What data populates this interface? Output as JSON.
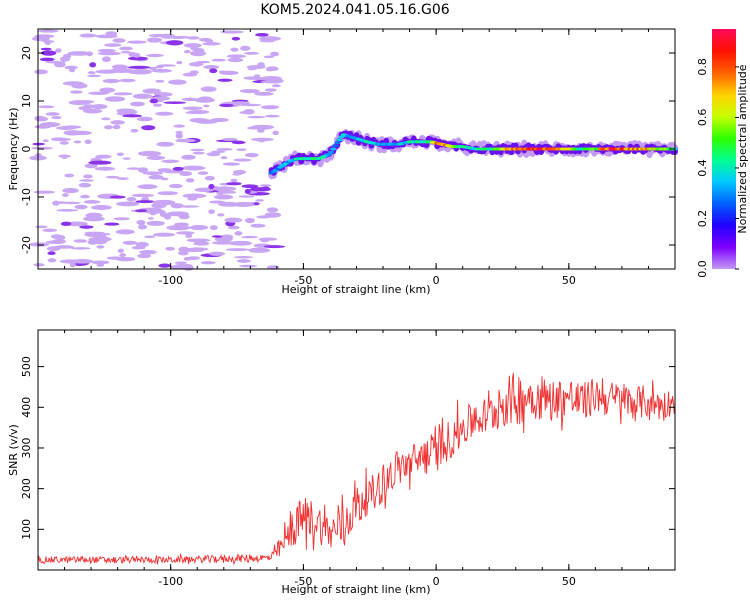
{
  "figure": {
    "title": "KOM5.2024.041.05.16.G06"
  },
  "chart_data": [
    {
      "type": "heatmap",
      "xlabel": "Height of straight line (km)",
      "ylabel": "Frequency (Hz)",
      "xlim": [
        -150,
        90
      ],
      "ylim": [
        -25,
        25
      ],
      "xticks": [
        -100,
        -50,
        0,
        50
      ],
      "yticks": [
        -20,
        -10,
        0,
        10,
        20
      ],
      "colorbar": {
        "label": "Normalized spectral amplitude",
        "range": [
          0.0,
          0.95
        ],
        "ticks": [
          0.0,
          0.2,
          0.4,
          0.6,
          0.8
        ],
        "colormap": [
          "#c39bf5",
          "#7f00ff",
          "#2000ff",
          "#0060ff",
          "#00c8ff",
          "#00ff90",
          "#30ff00",
          "#c8ff00",
          "#ffd000",
          "#ff6000",
          "#ff1000",
          "#ff0a5a"
        ]
      },
      "ridge": {
        "x": [
          -62,
          -58,
          -55,
          -52,
          -48,
          -44,
          -40,
          -37,
          -35,
          -32,
          -29,
          -26,
          -22,
          -18,
          -14,
          -10,
          -6,
          -2,
          2,
          6,
          10,
          15,
          20,
          25,
          30,
          35,
          40,
          45,
          50,
          55,
          60,
          65,
          70,
          75,
          80,
          85,
          90
        ],
        "freq": [
          -5,
          -3.5,
          -2.5,
          -2,
          -2,
          -2,
          -1,
          1.5,
          3,
          2.5,
          2,
          1.5,
          1,
          1,
          1,
          1.5,
          1.5,
          1.5,
          1,
          0.5,
          0.5,
          0,
          0,
          0,
          0,
          0,
          0,
          0,
          0,
          0,
          0,
          0,
          0,
          0,
          0,
          0,
          0
        ],
        "amplitude": [
          0.3,
          0.35,
          0.35,
          0.4,
          0.45,
          0.45,
          0.3,
          0.3,
          0.35,
          0.3,
          0.35,
          0.4,
          0.35,
          0.3,
          0.35,
          0.4,
          0.45,
          0.5,
          0.85,
          0.6,
          0.45,
          0.4,
          0.45,
          0.6,
          0.75,
          0.8,
          0.85,
          0.9,
          0.6,
          0.45,
          0.55,
          0.85,
          0.8,
          0.75,
          0.7,
          0.6,
          0.45
        ]
      },
      "noise_region_x": [
        -150,
        -60
      ]
    },
    {
      "type": "line",
      "xlabel": "Height of straight line (km)",
      "ylabel": "SNR (v/v)",
      "xlim": [
        -150,
        90
      ],
      "ylim": [
        0,
        590
      ],
      "xticks": [
        -100,
        -50,
        0,
        50
      ],
      "yticks": [
        100,
        200,
        300,
        400,
        500
      ],
      "color": "#ee3030",
      "envelope": {
        "x": [
          -150,
          -100,
          -62,
          -58,
          -55,
          -50,
          -45,
          -40,
          -35,
          -30,
          -25,
          -20,
          -15,
          -10,
          -5,
          0,
          5,
          10,
          15,
          20,
          25,
          30,
          35,
          40,
          45,
          50,
          55,
          60,
          65,
          70,
          75,
          80,
          85,
          90
        ],
        "mid": [
          25,
          25,
          30,
          60,
          90,
          130,
          120,
          90,
          110,
          160,
          185,
          210,
          250,
          260,
          280,
          290,
          320,
          350,
          370,
          380,
          410,
          420,
          430,
          420,
          420,
          425,
          410,
          430,
          420,
          420,
          410,
          415,
          405,
          415
        ],
        "amp": [
          8,
          8,
          10,
          30,
          40,
          55,
          50,
          45,
          55,
          50,
          45,
          45,
          45,
          45,
          50,
          50,
          50,
          50,
          45,
          50,
          60,
          70,
          55,
          55,
          50,
          55,
          50,
          45,
          45,
          45,
          45,
          40,
          40,
          30
        ]
      }
    }
  ]
}
